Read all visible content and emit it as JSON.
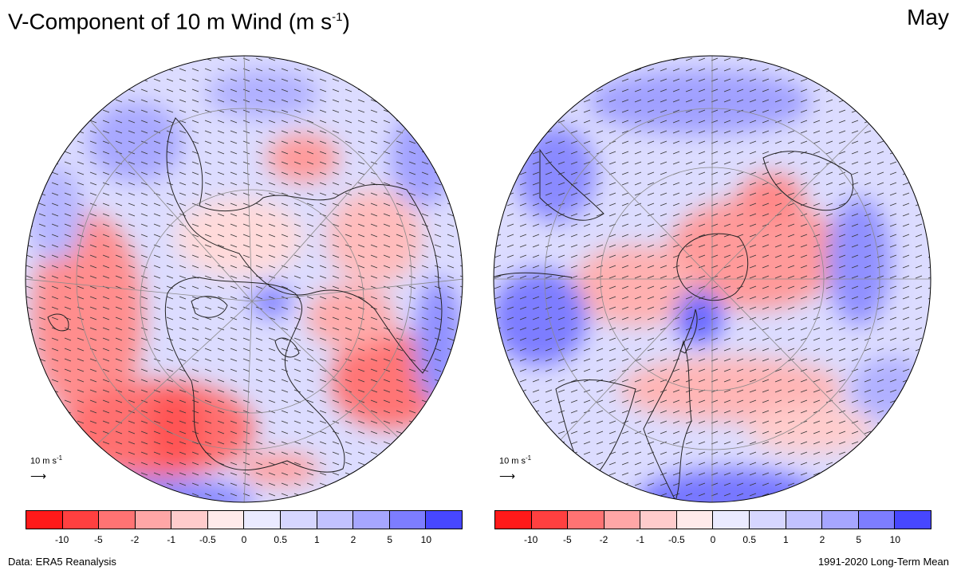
{
  "title": {
    "main": "V-Component of 10 m Wind (m s",
    "exponent": "-1",
    "close": ")"
  },
  "month": "May",
  "reference_vector": {
    "label": "10 m s",
    "exponent": "-1",
    "arrow": "⟶"
  },
  "colorbar": {
    "colors": [
      "#ff1a1a",
      "#ff4040",
      "#ff7373",
      "#ffa6a6",
      "#ffcccc",
      "#ffeaea",
      "#eaeaff",
      "#d6d6ff",
      "#c2c2ff",
      "#a6a6ff",
      "#7d7dff",
      "#4747ff"
    ],
    "tick_labels": [
      "-10",
      "-5",
      "-2",
      "-1",
      "-0.5",
      "0",
      "0.5",
      "1",
      "2",
      "5",
      "10"
    ]
  },
  "maps": [
    {
      "hemisphere": "northern"
    },
    {
      "hemisphere": "southern"
    }
  ],
  "footer": {
    "source": "Data: ERA5 Reanalysis",
    "period": "1991-2020 Long-Term Mean"
  }
}
